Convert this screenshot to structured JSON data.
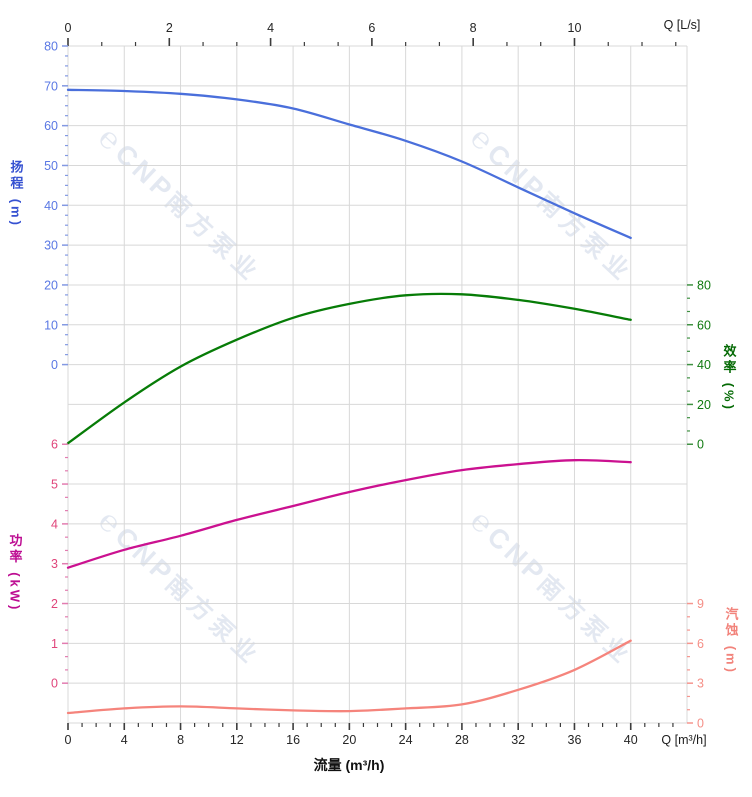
{
  "chart_data": {
    "type": "line",
    "x_label_bottom": "流量 (m³/h)",
    "x_unit_bottom": "Q [m³/h]",
    "x_unit_top": "Q [L/s]",
    "x_max_m3h": 44,
    "grid_on": true,
    "grid_color": "#d8d8d8",
    "tick_color_xaxes": "#3c3c3c",
    "xlabel_color": "#262626",
    "x_points_m3h": [
      0,
      4,
      8,
      12,
      16,
      20,
      24,
      28,
      32,
      36,
      40
    ],
    "top_axis": {
      "majors": [
        0,
        2,
        4,
        6,
        8,
        10
      ],
      "minor_step": 0.6667,
      "min": 0,
      "max": 12.2
    },
    "bottom_axis": {
      "majors": [
        0,
        4,
        8,
        12,
        16,
        20,
        24,
        28,
        32,
        36,
        40
      ],
      "minor_step": 1,
      "min": 0,
      "max": 44
    },
    "series": [
      {
        "id": "head",
        "name": "扬程",
        "unit": "(m)",
        "axis_title": "扬程 (m)",
        "color": "#4a6fdb",
        "tick_color": "#8399e2",
        "label_color": "#5a78e4",
        "title_color": "#3551d1",
        "values": [
          69,
          68.7,
          68.0,
          66.6,
          64.3,
          60.3,
          56.2,
          51.0,
          44.5,
          38.0,
          31.8
        ],
        "axis": {
          "side": "left",
          "min": 0,
          "max": 80,
          "majors": [
            0,
            10,
            20,
            30,
            40,
            50,
            60,
            70,
            80
          ],
          "minor_step": 2.5,
          "row_top": 0,
          "row_bottom": 8
        }
      },
      {
        "id": "efficiency",
        "name": "效率",
        "unit": "(%)",
        "axis_title": "效率 (%)",
        "color": "#077c07",
        "tick_color": "#3f9142",
        "label_color": "#117a11",
        "title_color": "#056a05",
        "values": [
          0.5,
          21,
          39,
          52.5,
          63.5,
          70.5,
          74.8,
          75.3,
          72.5,
          68,
          62.5
        ],
        "axis": {
          "side": "right",
          "min": 0,
          "max": 80,
          "majors": [
            0,
            20,
            40,
            60,
            80
          ],
          "minor_step": 6.6667,
          "row_top": 6,
          "row_bottom": 10
        }
      },
      {
        "id": "power",
        "name": "功率",
        "unit": "(kW)",
        "axis_title": "功率 (kW)",
        "color": "#cb1190",
        "tick_color": "#e27cb0",
        "label_color": "#e0457b",
        "title_color": "#bd0d92",
        "values": [
          2.9,
          3.35,
          3.7,
          4.1,
          4.45,
          4.8,
          5.1,
          5.35,
          5.5,
          5.6,
          5.55
        ],
        "axis": {
          "side": "left",
          "min": 0,
          "max": 6,
          "majors": [
            0,
            1,
            2,
            3,
            4,
            5,
            6
          ],
          "minor_step": 0.3333,
          "row_top": 10,
          "row_bottom": 16
        }
      },
      {
        "id": "npsh",
        "name": "汽蚀",
        "unit": "(m)",
        "axis_title": "汽蚀 (m)",
        "color": "#f5847c",
        "tick_color": "#f6958e",
        "label_color": "#f58f87",
        "title_color": "#f2837b",
        "values": [
          0.75,
          1.1,
          1.25,
          1.1,
          0.95,
          0.9,
          1.1,
          1.4,
          2.5,
          4.0,
          6.2
        ],
        "axis": {
          "side": "right",
          "min": 0,
          "max": 9,
          "majors": [
            0,
            3,
            6,
            9
          ],
          "minor_step": 1,
          "row_top": 14,
          "row_bottom": 17
        }
      }
    ]
  },
  "watermark": {
    "logo": "℮",
    "brand": "CNP",
    "company": "南方泵业",
    "color": "#e3e8f1"
  }
}
